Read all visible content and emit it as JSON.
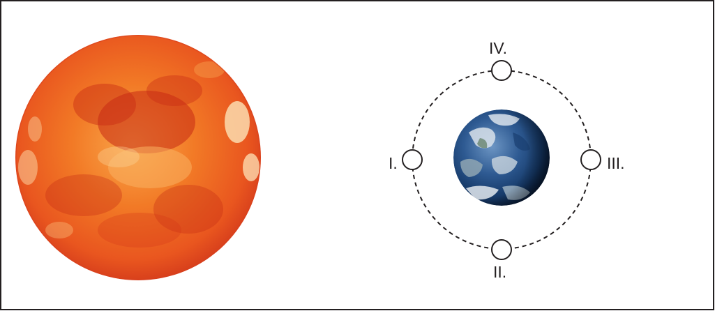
{
  "diagram": {
    "colors": {
      "border": "#231f20",
      "orbit": "#231f20",
      "moon_fill": "#ffffff",
      "sun_core": "#f26c1c",
      "sun_edge": "#e0401e",
      "sun_dark": "#c72a14",
      "sun_bright": "#fbd9a0",
      "ocean": "#2e5a92",
      "ocean_dark": "#0d2240",
      "cloud": "#d9e2ea"
    },
    "sun": {
      "icon": "sun-icon"
    },
    "earth": {
      "icon": "earth-icon"
    },
    "moon_positions": [
      {
        "label": "I.",
        "icon": "moon-position-marker"
      },
      {
        "label": "II.",
        "icon": "moon-position-marker"
      },
      {
        "label": "III.",
        "icon": "moon-position-marker"
      },
      {
        "label": "IV.",
        "icon": "moon-position-marker"
      }
    ]
  }
}
